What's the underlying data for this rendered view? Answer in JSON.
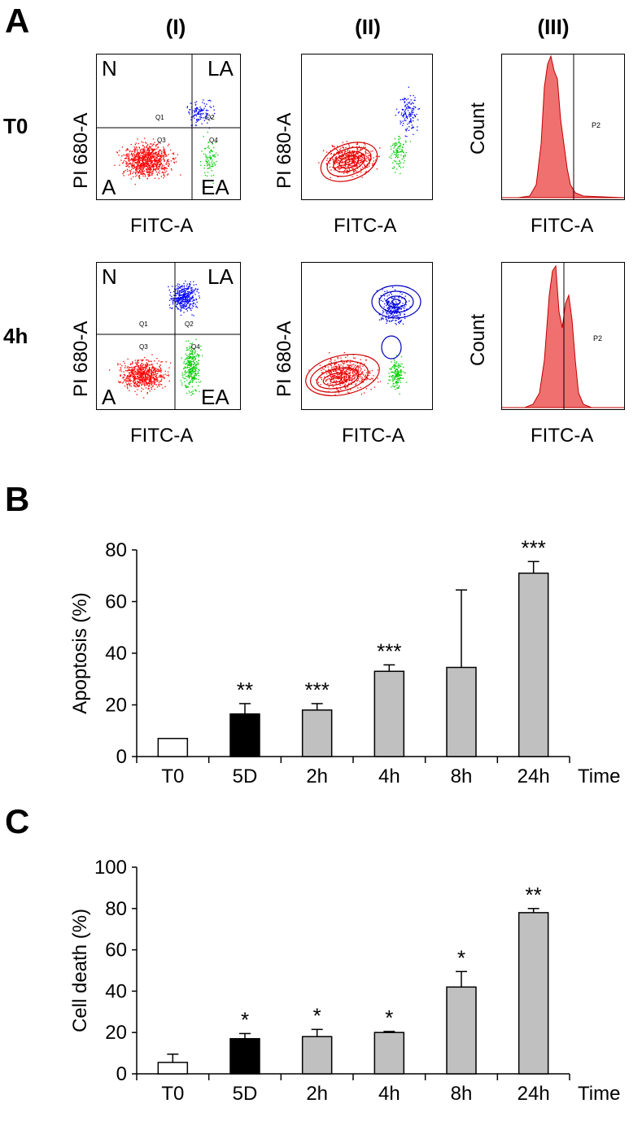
{
  "panelA": {
    "letter": "A",
    "columns": [
      "(I)",
      "(II)",
      "(III)"
    ],
    "rows": [
      "T0",
      "4h"
    ],
    "ylabel_dot": "PI 680-A",
    "xlabel": "FITC-A",
    "ylabel_hist": "Count",
    "quadrants": {
      "N": "N",
      "LA": "LA",
      "A": "A",
      "EA": "EA"
    },
    "gates": {
      "q1": "Q1",
      "q2": "Q2",
      "q3": "Q3",
      "q4": "Q4",
      "p2": "P2"
    },
    "colors": {
      "red": "#ff0000",
      "blue": "#0000ff",
      "green": "#00cc00",
      "hist_fill": "#f07070"
    }
  },
  "panelB": {
    "letter": "B"
  },
  "panelC": {
    "letter": "C"
  },
  "chart_data": [
    {
      "type": "bar",
      "title": "",
      "xlabel": "Time",
      "ylabel": "Apoptosis (%)",
      "categories": [
        "T0",
        "5D",
        "2h",
        "4h",
        "8h",
        "24h"
      ],
      "values": [
        7,
        16.5,
        18,
        33,
        34.5,
        71
      ],
      "errors": [
        0,
        4,
        2.5,
        2.5,
        30,
        4.5
      ],
      "fills": [
        "#ffffff",
        "#000000",
        "#c0c0c0",
        "#c0c0c0",
        "#c0c0c0",
        "#c0c0c0"
      ],
      "significance": [
        "",
        "**",
        "***",
        "***",
        "",
        "***"
      ],
      "ylim": [
        0,
        80
      ],
      "yticks": [
        "0",
        "20",
        "40",
        "60",
        "80"
      ]
    },
    {
      "type": "bar",
      "title": "",
      "xlabel": "Time",
      "ylabel": "Cell death (%)",
      "categories": [
        "T0",
        "5D",
        "2h",
        "4h",
        "8h",
        "24h"
      ],
      "values": [
        5.5,
        17,
        18,
        20,
        42,
        78
      ],
      "errors": [
        4,
        2.5,
        3.5,
        0.5,
        7.5,
        2
      ],
      "fills": [
        "#ffffff",
        "#000000",
        "#c0c0c0",
        "#c0c0c0",
        "#c0c0c0",
        "#c0c0c0"
      ],
      "significance": [
        "",
        "*",
        "*",
        "*",
        "*",
        "**"
      ],
      "ylim": [
        0,
        100
      ],
      "yticks": [
        "0",
        "20",
        "40",
        "60",
        "80",
        "100"
      ]
    }
  ]
}
